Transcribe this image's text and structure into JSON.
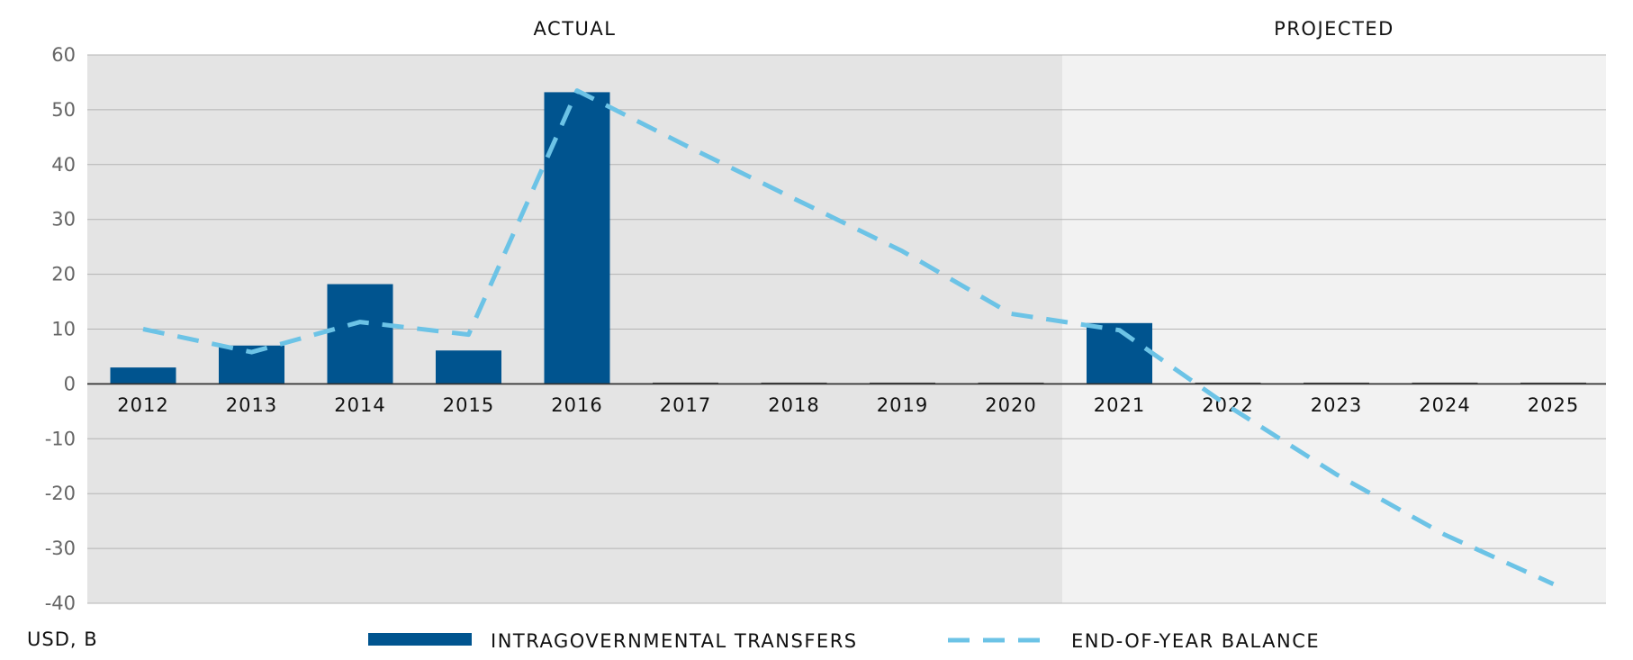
{
  "chart_data": {
    "type": "bar",
    "categories": [
      "2012",
      "2013",
      "2014",
      "2015",
      "2016",
      "2017",
      "2018",
      "2019",
      "2020",
      "2021",
      "2022",
      "2023",
      "2024",
      "2025"
    ],
    "sections": [
      {
        "label": "ACTUAL",
        "from": "2012",
        "to": "2020",
        "color": "#e4e4e4"
      },
      {
        "label": "PROJECTED",
        "from": "2021",
        "to": "2025",
        "color": "#f2f2f2"
      }
    ],
    "series": [
      {
        "name": "INTRAGOVERNMENTAL TRANSFERS",
        "kind": "bar",
        "color": "#00548f",
        "values": [
          3.0,
          7.0,
          18.2,
          6.1,
          53.2,
          0,
          0,
          0,
          0,
          11.1,
          0,
          0,
          0,
          0
        ]
      },
      {
        "name": "END-OF-YEAR BALANCE",
        "kind": "dashed-line",
        "color": "#6cc3e6",
        "values": [
          10.0,
          5.8,
          11.3,
          9.0,
          53.5,
          43.5,
          33.8,
          24.2,
          12.8,
          9.8,
          -4.0,
          -16.5,
          -27.5,
          -36.5
        ]
      }
    ],
    "ylim": [
      -40,
      60
    ],
    "yticks": [
      60,
      50,
      40,
      30,
      20,
      10,
      0,
      -10,
      -20,
      -30,
      -40
    ],
    "ylabel": "USD, B",
    "grid": true,
    "legend_position": "bottom"
  }
}
